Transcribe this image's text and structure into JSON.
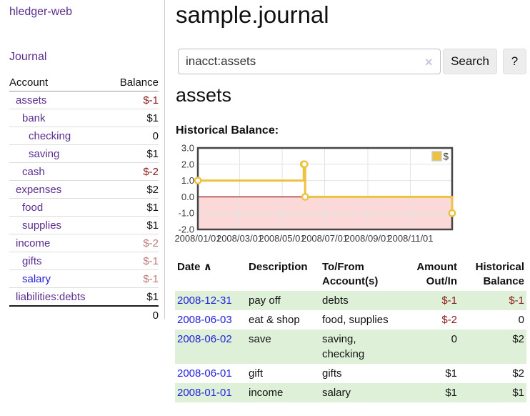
{
  "colors": {
    "link_purple": "#5c2d91",
    "link_blue": "#2222dd",
    "negative_strong": "#8b1a1a",
    "negative_soft": "#c07878",
    "row_stripe_green": "#dff0d8"
  },
  "sidebar": {
    "app_title": "hledger-web",
    "nav_journal": "Journal",
    "accounts": {
      "header_account": "Account",
      "header_balance": "Balance",
      "rows": [
        {
          "name": "assets",
          "balance": "$-1"
        },
        {
          "name": "bank",
          "balance": "$1"
        },
        {
          "name": "checking",
          "balance": "0"
        },
        {
          "name": "saving",
          "balance": "$1"
        },
        {
          "name": "cash",
          "balance": "$-2"
        },
        {
          "name": "expenses",
          "balance": "$2"
        },
        {
          "name": "food",
          "balance": "$1"
        },
        {
          "name": "supplies",
          "balance": "$1"
        },
        {
          "name": "income",
          "balance": "$-2"
        },
        {
          "name": "gifts",
          "balance": "$-1"
        },
        {
          "name": "salary",
          "balance": "$-1"
        },
        {
          "name": "liabilities:debts",
          "balance": "$1"
        }
      ],
      "total": "0"
    }
  },
  "main": {
    "title": "sample.journal",
    "search": {
      "value": "inacct:assets",
      "clear_icon": "×",
      "search_button": "Search",
      "help_button": "?"
    },
    "account_heading": "assets",
    "section_label": "Historical Balance:"
  },
  "chart_data": {
    "type": "line",
    "title": "Historical Balance:",
    "step": true,
    "series": [
      {
        "name": "$",
        "color": "#edc240",
        "points": [
          {
            "date": "2008-01-01",
            "value": 1
          },
          {
            "date": "2008-06-01",
            "value": 2
          },
          {
            "date": "2008-06-02",
            "value": 2
          },
          {
            "date": "2008-06-03",
            "value": 0
          },
          {
            "date": "2008-12-31",
            "value": -1
          }
        ]
      }
    ],
    "ylim": [
      -2,
      3
    ],
    "y_ticks": [
      "3.0",
      "2.0",
      "1.0",
      "0.0",
      "-1.0",
      "-2.0"
    ],
    "xlim": [
      "2008-01-01",
      "2008-12-31"
    ],
    "x_ticks": [
      "2008/01/01",
      "2008/03/01",
      "2008/05/01",
      "2008/07/01",
      "2008/09/01",
      "2008/11/01"
    ],
    "grid": true,
    "legend_position": "top-right",
    "plot_border_color": "#454545",
    "grid_color": "#e3e3e3",
    "negative_area_color": "#fbd9d9",
    "zero_line_color": "#a22424",
    "tick_label_color": "#3c3c3c"
  },
  "register": {
    "headers": {
      "date": "Date",
      "description": "Description",
      "tofrom": "To/From Account(s)",
      "amount": "Amount Out/In",
      "balance": "Historical Balance"
    },
    "sort_icon": "∧",
    "rows": [
      {
        "date": "2008-12-31",
        "description": "pay off",
        "accounts": "debts",
        "amount": "$-1",
        "balance": "$-1"
      },
      {
        "date": "2008-06-03",
        "description": "eat & shop",
        "accounts": "food, supplies",
        "amount": "$-2",
        "balance": "0"
      },
      {
        "date": "2008-06-02",
        "description": "save",
        "accounts": "saving, checking",
        "amount": "0",
        "balance": "$2"
      },
      {
        "date": "2008-06-01",
        "description": "gift",
        "accounts": "gifts",
        "amount": "$1",
        "balance": "$2"
      },
      {
        "date": "2008-01-01",
        "description": "income",
        "accounts": "salary",
        "amount": "$1",
        "balance": "$1"
      }
    ]
  }
}
